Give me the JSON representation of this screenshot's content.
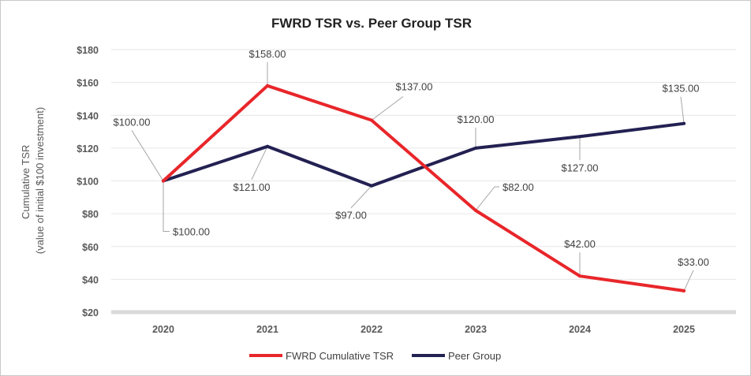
{
  "chart_data": {
    "type": "line",
    "title": "FWRD TSR vs. Peer Group TSR",
    "ylabel_line1": "Cumulative TSR",
    "ylabel_line2": "(value of initial $100 investment)",
    "xlabel": "",
    "categories": [
      "2020",
      "2021",
      "2022",
      "2023",
      "2024",
      "2025"
    ],
    "ylim": [
      20,
      180
    ],
    "yticks": [
      20,
      40,
      60,
      80,
      100,
      120,
      140,
      160,
      180
    ],
    "ytick_labels": [
      "$20",
      "$40",
      "$60",
      "$80",
      "$100",
      "$120",
      "$140",
      "$160",
      "$180"
    ],
    "grid": true,
    "legend_position": "bottom",
    "series": [
      {
        "name": "FWRD Cumulative TSR",
        "color": "#e8262a",
        "values": [
          100,
          158,
          137,
          82,
          42,
          33
        ],
        "labels": [
          "$100.00",
          "$158.00",
          "$137.00",
          "$82.00",
          "$42.00",
          "$33.00"
        ]
      },
      {
        "name": "Peer Group",
        "color": "#232152",
        "values": [
          100,
          121,
          97,
          120,
          127,
          135
        ],
        "labels": [
          "$100.00",
          "$121.00",
          "$97.00",
          "$120.00",
          "$127.00",
          "$135.00"
        ]
      }
    ]
  }
}
